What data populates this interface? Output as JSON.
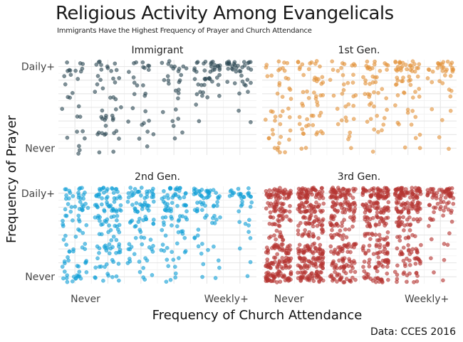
{
  "chart_data": {
    "type": "scatter",
    "title": "Religious Activity Among Evangelicals",
    "subtitle": "Immigrants Have the Highest Frequency of Prayer and Church Attendance",
    "xlabel": "Frequency of Church Attendance",
    "ylabel": "Frequency of Prayer",
    "x_ticks": [
      "Never",
      "Weekly+"
    ],
    "y_ticks": [
      "Never",
      "Daily+"
    ],
    "x_levels": 6,
    "y_levels": 7,
    "jittered": true,
    "grid": true,
    "caption": "Data: CCES 2016",
    "panels": [
      {
        "name": "Immigrant",
        "color": "#2f4b56"
      },
      {
        "name": "1st Gen.",
        "color": "#e2933b"
      },
      {
        "name": "2nd Gen.",
        "color": "#139fd6"
      },
      {
        "name": "3rd Gen.",
        "color": "#b53632"
      }
    ]
  }
}
